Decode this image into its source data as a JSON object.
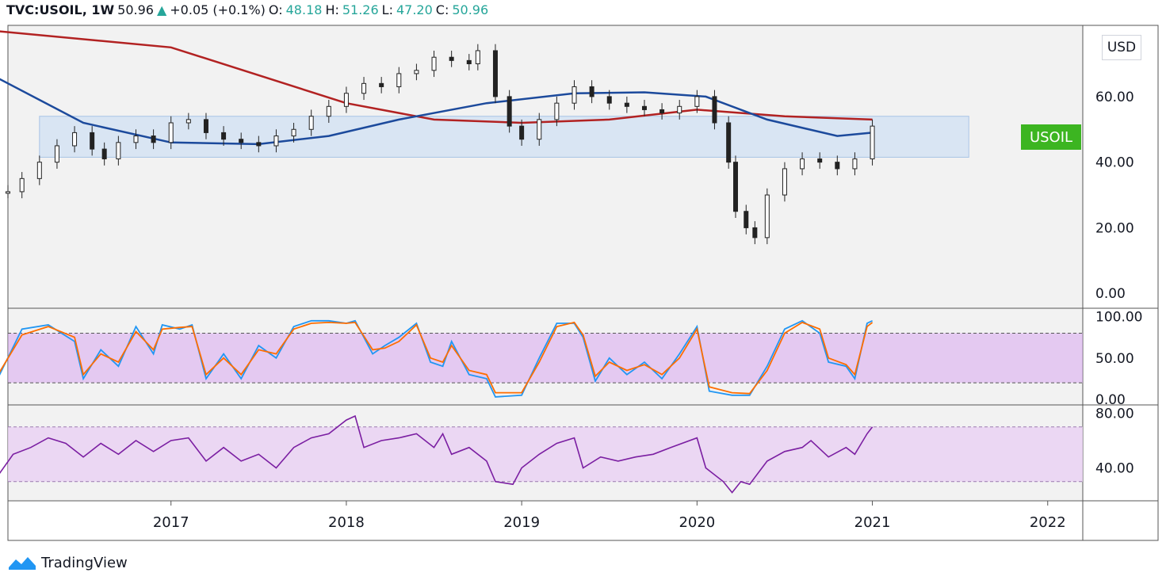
{
  "header": {
    "symbol": "TVC:USOIL, 1W",
    "last": "50.96",
    "arrow": "▲",
    "change": "+0.05 (+0.1%)",
    "o_label": "O:",
    "o_value": "48.18",
    "h_label": "H:",
    "h_value": "51.26",
    "l_label": "L:",
    "l_value": "47.20",
    "c_label": "C:",
    "c_value": "50.96"
  },
  "currency_badge": "USD",
  "price_tag": "USOIL",
  "brand": "TradingView",
  "colors": {
    "up": "#26a69a",
    "tag": "#3cb521",
    "ma_red": "#b22222",
    "ma_blue": "#1c4a9c",
    "stoch_k": "#2196f3",
    "stoch_d": "#ff6d00",
    "rsi": "#7b1fa2"
  },
  "chart_data": [
    {
      "type": "line",
      "panel": "price",
      "ylim": [
        0,
        80
      ],
      "yticks": [
        "0.00",
        "20.00",
        "40.00",
        "60.00"
      ],
      "xticks": [
        "2017",
        "2018",
        "2019",
        "2020",
        "2021",
        "2022"
      ],
      "x_range": [
        2016.07,
        2022.2
      ],
      "range_box": [
        41.5,
        54
      ],
      "series": [
        {
          "style": "candles",
          "points": [
            [
              2016.07,
              31
            ],
            [
              2016.15,
              35
            ],
            [
              2016.25,
              40
            ],
            [
              2016.35,
              45
            ],
            [
              2016.45,
              49
            ],
            [
              2016.55,
              44
            ],
            [
              2016.62,
              41
            ],
            [
              2016.7,
              46
            ],
            [
              2016.8,
              48
            ],
            [
              2016.9,
              46
            ],
            [
              2017.0,
              52
            ],
            [
              2017.1,
              53
            ],
            [
              2017.2,
              49
            ],
            [
              2017.3,
              47
            ],
            [
              2017.4,
              46
            ],
            [
              2017.5,
              45
            ],
            [
              2017.6,
              48
            ],
            [
              2017.7,
              50
            ],
            [
              2017.8,
              54
            ],
            [
              2017.9,
              57
            ],
            [
              2018.0,
              61
            ],
            [
              2018.1,
              64
            ],
            [
              2018.2,
              63
            ],
            [
              2018.3,
              67
            ],
            [
              2018.4,
              68
            ],
            [
              2018.5,
              72
            ],
            [
              2018.6,
              71
            ],
            [
              2018.7,
              70
            ],
            [
              2018.75,
              74
            ],
            [
              2018.85,
              60
            ],
            [
              2018.93,
              51
            ],
            [
              2019.0,
              47
            ],
            [
              2019.1,
              53
            ],
            [
              2019.2,
              58
            ],
            [
              2019.3,
              63
            ],
            [
              2019.4,
              60
            ],
            [
              2019.5,
              58
            ],
            [
              2019.6,
              57
            ],
            [
              2019.7,
              56
            ],
            [
              2019.8,
              55
            ],
            [
              2019.9,
              57
            ],
            [
              2020.0,
              60
            ],
            [
              2020.1,
              52
            ],
            [
              2020.18,
              40
            ],
            [
              2020.22,
              25
            ],
            [
              2020.28,
              20
            ],
            [
              2020.33,
              17
            ],
            [
              2020.4,
              30
            ],
            [
              2020.5,
              38
            ],
            [
              2020.6,
              41
            ],
            [
              2020.7,
              40
            ],
            [
              2020.8,
              38
            ],
            [
              2020.9,
              41
            ],
            [
              2021.0,
              51
            ]
          ]
        },
        {
          "style": "line",
          "points": [
            [
              2016.0,
              80
            ],
            [
              2017.0,
              75
            ],
            [
              2018.0,
              58
            ],
            [
              2018.5,
              53
            ],
            [
              2019.0,
              52
            ],
            [
              2019.5,
              53
            ],
            [
              2020.0,
              56
            ],
            [
              2020.5,
              54
            ],
            [
              2021.0,
              53
            ]
          ]
        },
        {
          "style": "line",
          "points": [
            [
              2016.0,
              66
            ],
            [
              2016.5,
              52
            ],
            [
              2017.0,
              46
            ],
            [
              2017.5,
              45.5
            ],
            [
              2017.9,
              48
            ],
            [
              2018.3,
              53
            ],
            [
              2018.8,
              58
            ],
            [
              2019.3,
              61
            ],
            [
              2019.7,
              61.3
            ],
            [
              2020.05,
              60
            ],
            [
              2020.4,
              53
            ],
            [
              2020.8,
              48
            ],
            [
              2021.0,
              49
            ]
          ]
        }
      ]
    },
    {
      "type": "line",
      "panel": "stochastic",
      "ylim": [
        0,
        100
      ],
      "yticks": [
        "0.00",
        "50.00",
        "100.00"
      ],
      "band": [
        20,
        80
      ],
      "series": [
        {
          "points": [
            [
              2016.0,
              20
            ],
            [
              2016.15,
              85
            ],
            [
              2016.3,
              90
            ],
            [
              2016.45,
              70
            ],
            [
              2016.5,
              25
            ],
            [
              2016.6,
              60
            ],
            [
              2016.7,
              40
            ],
            [
              2016.8,
              88
            ],
            [
              2016.9,
              55
            ],
            [
              2016.95,
              90
            ],
            [
              2017.05,
              85
            ],
            [
              2017.12,
              90
            ],
            [
              2017.2,
              25
            ],
            [
              2017.3,
              55
            ],
            [
              2017.4,
              25
            ],
            [
              2017.5,
              65
            ],
            [
              2017.6,
              50
            ],
            [
              2017.7,
              88
            ],
            [
              2017.8,
              95
            ],
            [
              2017.9,
              95
            ],
            [
              2018.0,
              92
            ],
            [
              2018.05,
              95
            ],
            [
              2018.15,
              55
            ],
            [
              2018.22,
              65
            ],
            [
              2018.3,
              75
            ],
            [
              2018.4,
              92
            ],
            [
              2018.48,
              45
            ],
            [
              2018.55,
              40
            ],
            [
              2018.6,
              70
            ],
            [
              2018.7,
              30
            ],
            [
              2018.8,
              25
            ],
            [
              2018.85,
              3
            ],
            [
              2019.0,
              5
            ],
            [
              2019.1,
              50
            ],
            [
              2019.2,
              92
            ],
            [
              2019.3,
              92
            ],
            [
              2019.35,
              75
            ],
            [
              2019.42,
              22
            ],
            [
              2019.5,
              50
            ],
            [
              2019.6,
              30
            ],
            [
              2019.7,
              45
            ],
            [
              2019.8,
              25
            ],
            [
              2019.9,
              55
            ],
            [
              2020.0,
              88
            ],
            [
              2020.07,
              10
            ],
            [
              2020.2,
              5
            ],
            [
              2020.3,
              5
            ],
            [
              2020.4,
              40
            ],
            [
              2020.5,
              85
            ],
            [
              2020.6,
              95
            ],
            [
              2020.7,
              80
            ],
            [
              2020.75,
              45
            ],
            [
              2020.85,
              40
            ],
            [
              2020.9,
              25
            ],
            [
              2020.97,
              92
            ],
            [
              2021.0,
              95
            ]
          ]
        },
        {
          "points": [
            [
              2016.0,
              25
            ],
            [
              2016.15,
              78
            ],
            [
              2016.3,
              88
            ],
            [
              2016.45,
              75
            ],
            [
              2016.5,
              30
            ],
            [
              2016.6,
              55
            ],
            [
              2016.7,
              45
            ],
            [
              2016.8,
              82
            ],
            [
              2016.9,
              60
            ],
            [
              2016.95,
              85
            ],
            [
              2017.05,
              87
            ],
            [
              2017.12,
              88
            ],
            [
              2017.2,
              30
            ],
            [
              2017.3,
              50
            ],
            [
              2017.4,
              30
            ],
            [
              2017.5,
              60
            ],
            [
              2017.6,
              55
            ],
            [
              2017.7,
              85
            ],
            [
              2017.8,
              92
            ],
            [
              2017.9,
              93
            ],
            [
              2018.0,
              92
            ],
            [
              2018.05,
              93
            ],
            [
              2018.15,
              60
            ],
            [
              2018.22,
              62
            ],
            [
              2018.3,
              70
            ],
            [
              2018.4,
              90
            ],
            [
              2018.48,
              50
            ],
            [
              2018.55,
              45
            ],
            [
              2018.6,
              65
            ],
            [
              2018.7,
              35
            ],
            [
              2018.8,
              30
            ],
            [
              2018.85,
              8
            ],
            [
              2019.0,
              8
            ],
            [
              2019.1,
              45
            ],
            [
              2019.2,
              88
            ],
            [
              2019.3,
              93
            ],
            [
              2019.35,
              78
            ],
            [
              2019.42,
              28
            ],
            [
              2019.5,
              45
            ],
            [
              2019.6,
              35
            ],
            [
              2019.7,
              42
            ],
            [
              2019.8,
              30
            ],
            [
              2019.9,
              50
            ],
            [
              2020.0,
              85
            ],
            [
              2020.07,
              15
            ],
            [
              2020.2,
              8
            ],
            [
              2020.3,
              7
            ],
            [
              2020.4,
              35
            ],
            [
              2020.5,
              80
            ],
            [
              2020.6,
              93
            ],
            [
              2020.7,
              85
            ],
            [
              2020.75,
              50
            ],
            [
              2020.85,
              42
            ],
            [
              2020.9,
              30
            ],
            [
              2020.97,
              88
            ],
            [
              2021.0,
              93
            ]
          ]
        }
      ]
    },
    {
      "type": "line",
      "panel": "rsi",
      "ylim": [
        20,
        80
      ],
      "yticks": [
        "40.00",
        "80.00"
      ],
      "band": [
        30,
        70
      ],
      "series": [
        {
          "points": [
            [
              2016.0,
              32
            ],
            [
              2016.1,
              50
            ],
            [
              2016.2,
              55
            ],
            [
              2016.3,
              62
            ],
            [
              2016.4,
              58
            ],
            [
              2016.5,
              48
            ],
            [
              2016.6,
              58
            ],
            [
              2016.7,
              50
            ],
            [
              2016.8,
              60
            ],
            [
              2016.9,
              52
            ],
            [
              2017.0,
              60
            ],
            [
              2017.1,
              62
            ],
            [
              2017.2,
              45
            ],
            [
              2017.3,
              55
            ],
            [
              2017.4,
              45
            ],
            [
              2017.5,
              50
            ],
            [
              2017.6,
              40
            ],
            [
              2017.7,
              55
            ],
            [
              2017.8,
              62
            ],
            [
              2017.9,
              65
            ],
            [
              2018.0,
              75
            ],
            [
              2018.05,
              78
            ],
            [
              2018.1,
              55
            ],
            [
              2018.2,
              60
            ],
            [
              2018.3,
              62
            ],
            [
              2018.4,
              65
            ],
            [
              2018.5,
              55
            ],
            [
              2018.55,
              65
            ],
            [
              2018.6,
              50
            ],
            [
              2018.7,
              55
            ],
            [
              2018.8,
              45
            ],
            [
              2018.85,
              30
            ],
            [
              2018.95,
              28
            ],
            [
              2019.0,
              40
            ],
            [
              2019.1,
              50
            ],
            [
              2019.2,
              58
            ],
            [
              2019.3,
              62
            ],
            [
              2019.35,
              40
            ],
            [
              2019.45,
              48
            ],
            [
              2019.55,
              45
            ],
            [
              2019.65,
              48
            ],
            [
              2019.75,
              50
            ],
            [
              2019.85,
              55
            ],
            [
              2020.0,
              62
            ],
            [
              2020.05,
              40
            ],
            [
              2020.15,
              30
            ],
            [
              2020.2,
              22
            ],
            [
              2020.25,
              30
            ],
            [
              2020.3,
              28
            ],
            [
              2020.4,
              45
            ],
            [
              2020.5,
              52
            ],
            [
              2020.6,
              55
            ],
            [
              2020.65,
              60
            ],
            [
              2020.75,
              48
            ],
            [
              2020.85,
              55
            ],
            [
              2020.9,
              50
            ],
            [
              2020.97,
              65
            ],
            [
              2021.0,
              70
            ]
          ]
        }
      ]
    }
  ]
}
